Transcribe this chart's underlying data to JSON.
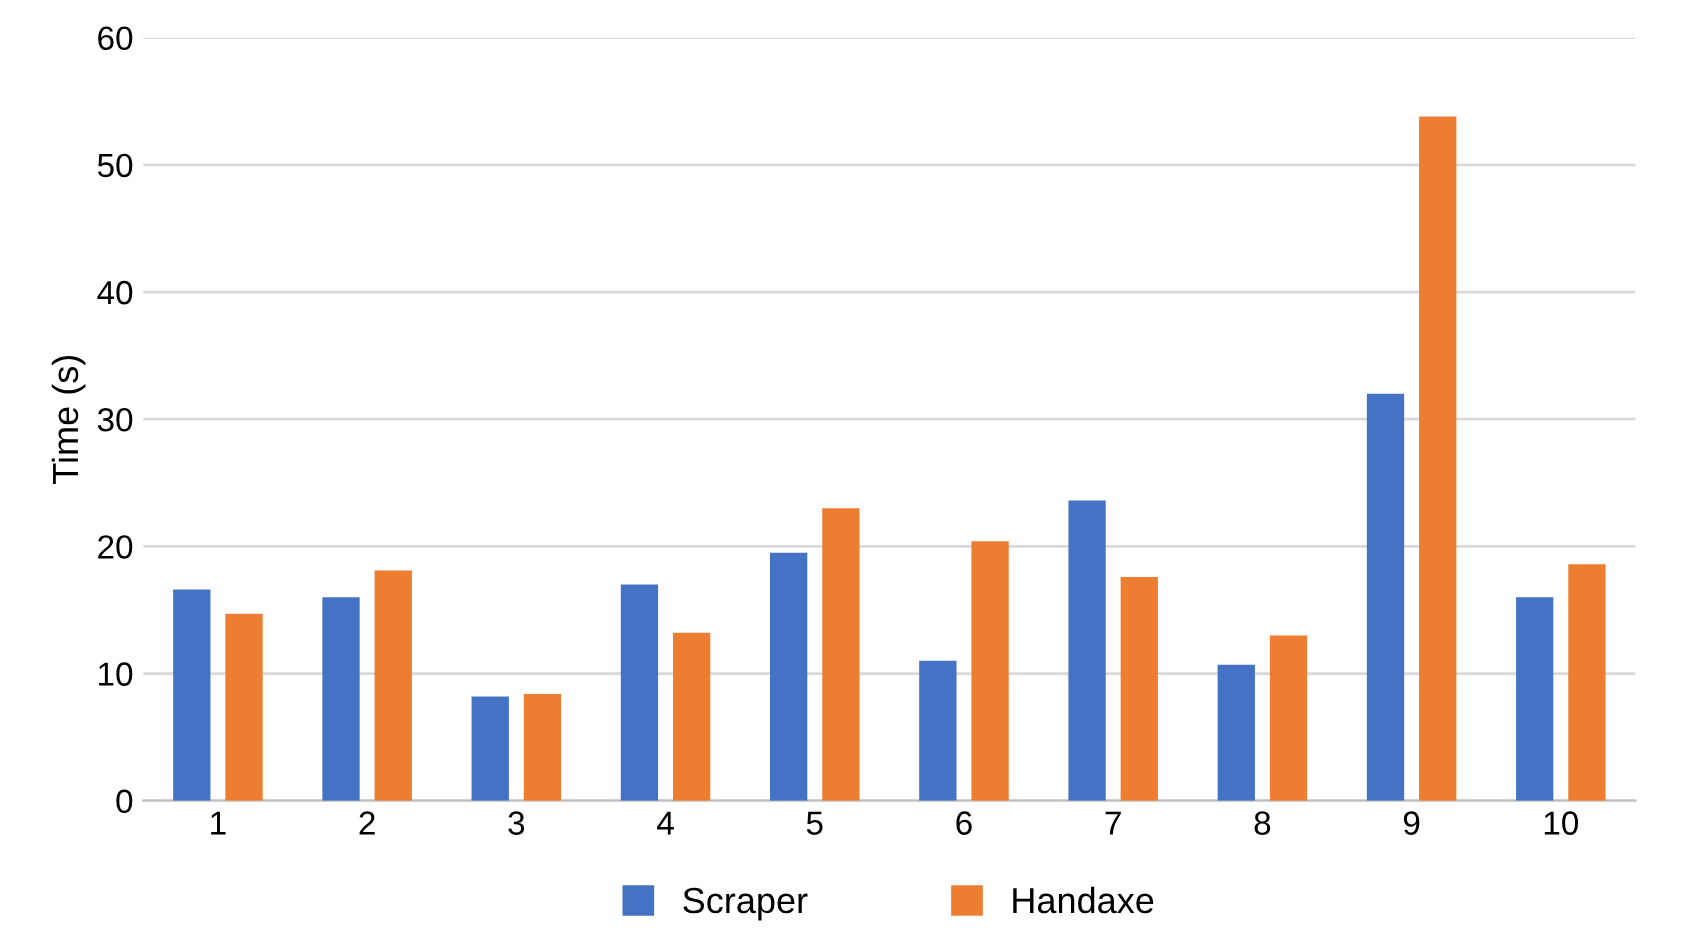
{
  "chart_data": {
    "type": "bar",
    "ylabel": "Time (s)",
    "categories": [
      "1",
      "2",
      "3",
      "4",
      "5",
      "6",
      "7",
      "8",
      "9",
      "10"
    ],
    "series": [
      {
        "name": "Scraper",
        "color": "#4472c4",
        "values": [
          16.6,
          16.0,
          8.2,
          17.0,
          19.5,
          11.0,
          23.6,
          10.7,
          32.0,
          16.0
        ]
      },
      {
        "name": "Handaxe",
        "color": "#ed7d31",
        "values": [
          14.7,
          18.1,
          8.4,
          13.2,
          23.0,
          20.4,
          17.6,
          13.0,
          53.8,
          18.6
        ]
      }
    ],
    "ylim": [
      0,
      60
    ],
    "yticks": [
      0,
      10,
      20,
      30,
      40,
      50,
      60
    ],
    "grid": "y",
    "legend": "bottom"
  }
}
